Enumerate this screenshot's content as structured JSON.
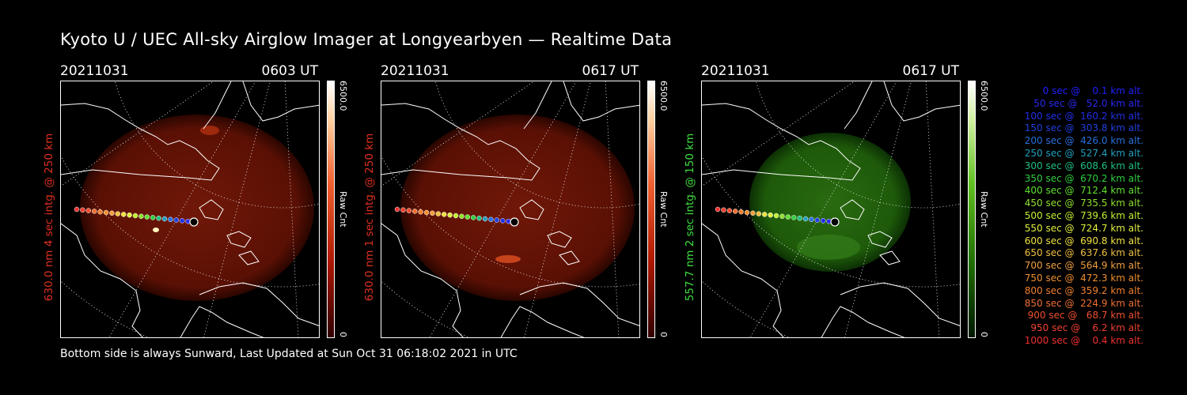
{
  "title": "Kyoto U / UEC All-sky Airglow Imager at Longyearbyen — Realtime Data",
  "footer": "Bottom side is always Sunward, Last Updated at Sun Oct 31 06:18:02 2021 in UTC",
  "panels": [
    {
      "date": "20211031",
      "time": "0603 UT",
      "side": "630.0 nm 4 sec intg. @ 250 km",
      "side_color": "#e03020",
      "cb_max": "6500.0",
      "cb_min": "0",
      "cb_label": "Raw Cnt",
      "colormap": "red"
    },
    {
      "date": "20211031",
      "time": "0617 UT",
      "side": "630.0 nm 1 sec intg. @ 250 km",
      "side_color": "#e03020",
      "cb_max": "6500.0",
      "cb_min": "0",
      "cb_label": "Raw Cnt",
      "colormap": "red"
    },
    {
      "date": "20211031",
      "time": "0617 UT",
      "side": "557.7 nm 2 sec intg. @ 150 km",
      "side_color": "#40e040",
      "cb_max": "6500.0",
      "cb_min": "0",
      "cb_label": "Raw Cnt",
      "colormap": "green"
    }
  ],
  "legend": [
    {
      "text": "   0 sec @    0.1 km alt.",
      "color": "#2020ff"
    },
    {
      "text": "  50 sec @   52.0 km alt.",
      "color": "#2828f0"
    },
    {
      "text": " 100 sec @  160.2 km alt.",
      "color": "#2030e8"
    },
    {
      "text": " 150 sec @  303.8 km alt.",
      "color": "#2040e0"
    },
    {
      "text": " 200 sec @  426.0 km alt.",
      "color": "#2a70e0"
    },
    {
      "text": " 250 sec @  527.4 km alt.",
      "color": "#20a0c0"
    },
    {
      "text": " 300 sec @  608.6 km alt.",
      "color": "#20c080"
    },
    {
      "text": " 350 sec @  670.2 km alt.",
      "color": "#30d040"
    },
    {
      "text": " 400 sec @  712.4 km alt.",
      "color": "#60e030"
    },
    {
      "text": " 450 sec @  735.5 km alt.",
      "color": "#90e030"
    },
    {
      "text": " 500 sec @  739.6 km alt.",
      "color": "#c0f030"
    },
    {
      "text": " 550 sec @  724.7 km alt.",
      "color": "#e0f040"
    },
    {
      "text": " 600 sec @  690.8 km alt.",
      "color": "#f0e040"
    },
    {
      "text": " 650 sec @  637.6 km alt.",
      "color": "#f0c040"
    },
    {
      "text": " 700 sec @  564.9 km alt.",
      "color": "#f0a040"
    },
    {
      "text": " 750 sec @  472.3 km alt.",
      "color": "#f09030"
    },
    {
      "text": " 800 sec @  359.2 km alt.",
      "color": "#f08030"
    },
    {
      "text": " 850 sec @  224.9 km alt.",
      "color": "#f07030"
    },
    {
      "text": " 900 sec @   68.7 km alt.",
      "color": "#f05030"
    },
    {
      "text": " 950 sec @    6.2 km alt.",
      "color": "#f04030"
    },
    {
      "text": "1000 sec @    0.4 km alt.",
      "color": "#f03030"
    }
  ]
}
